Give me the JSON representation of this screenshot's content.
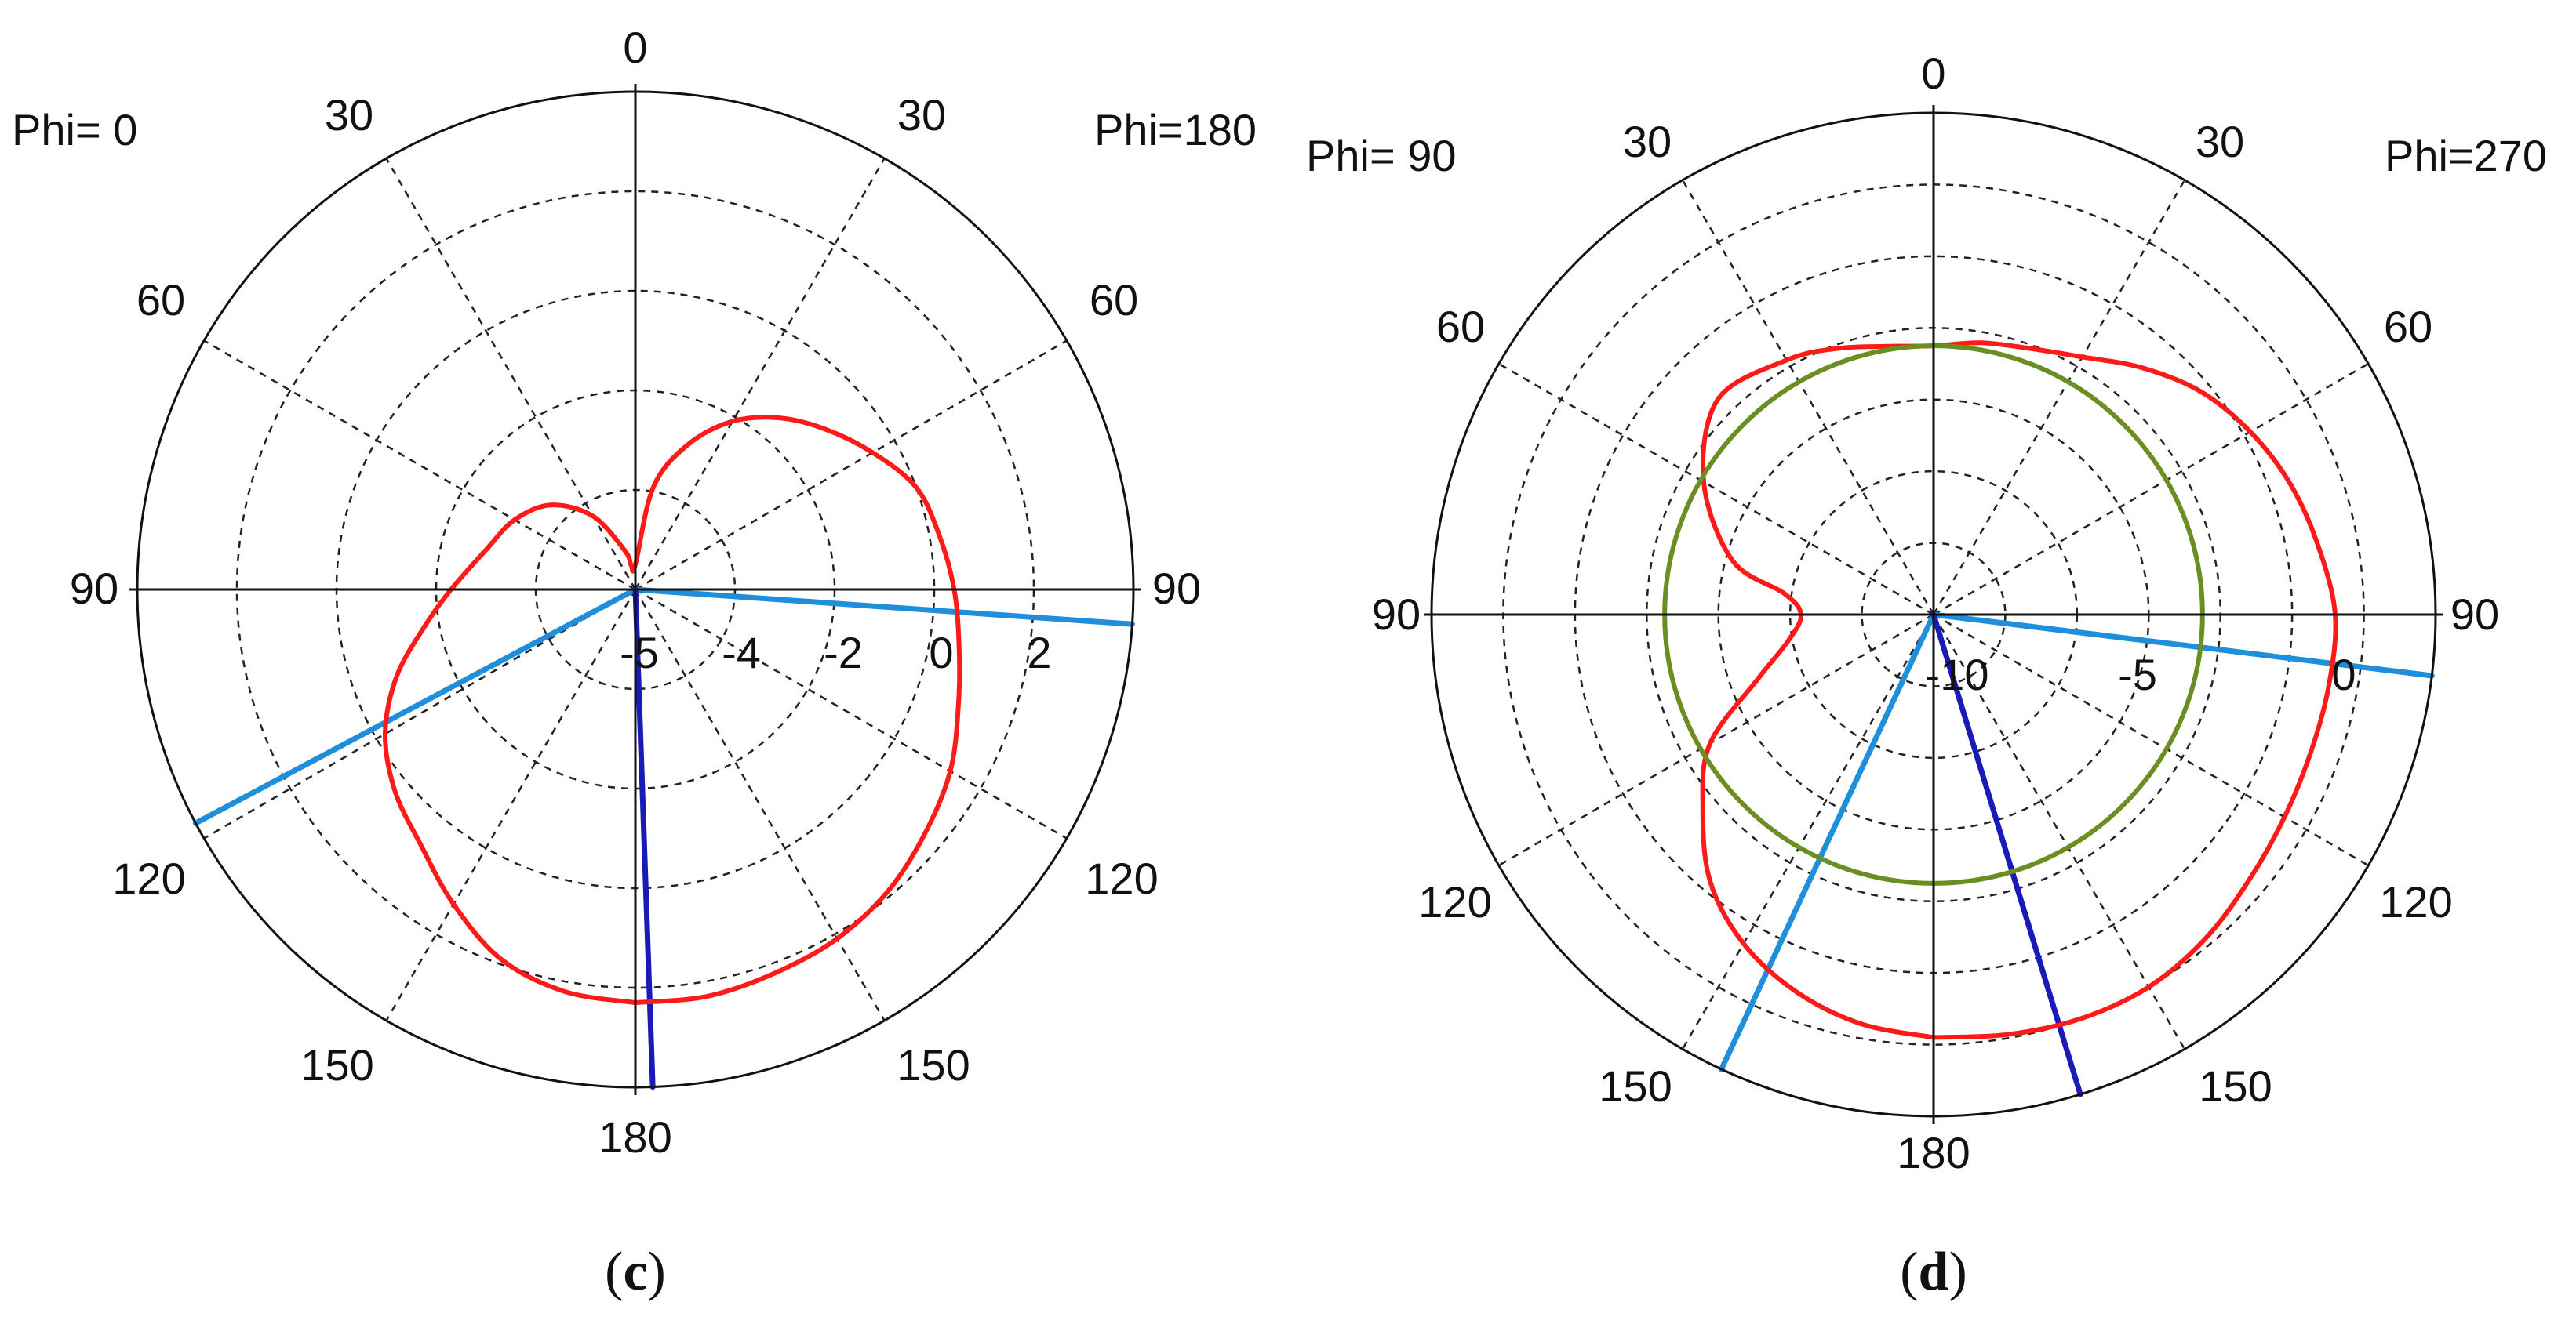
{
  "chart_data": [
    {
      "type": "polar",
      "panel_label": "c",
      "label_left": "Phi=  0",
      "label_right": "Phi=180",
      "angle_labels": {
        "top": "0",
        "left": [
          "30",
          "60",
          "90",
          "120",
          "150"
        ],
        "right": [
          "30",
          "60",
          "90",
          "120",
          "150"
        ],
        "bottom": "180"
      },
      "radial_axis": {
        "min": -6,
        "max": 4,
        "ticks": [
          -6,
          -4,
          -2,
          0,
          2,
          4
        ],
        "tick_labels": [
          "-5",
          "-4",
          "-2",
          "0",
          "2"
        ]
      },
      "grid": true,
      "series": [
        {
          "color": "#ff1a1a",
          "points": [
            {
              "theta": -180,
              "r": 2.3
            },
            {
              "theta": -170,
              "r": 2.3
            },
            {
              "theta": -160,
              "r": 2.2
            },
            {
              "theta": -150,
              "r": 2.1
            },
            {
              "theta": -140,
              "r": 1.9
            },
            {
              "theta": -130,
              "r": 1.6
            },
            {
              "theta": -120,
              "r": 1.3
            },
            {
              "theta": -110,
              "r": 0.9
            },
            {
              "theta": -100,
              "r": 0.6
            },
            {
              "theta": -90,
              "r": 0.4
            },
            {
              "theta": -80,
              "r": 0.2
            },
            {
              "theta": -70,
              "r": 0.0
            },
            {
              "theta": -60,
              "r": -0.5
            },
            {
              "theta": -50,
              "r": -1.0
            },
            {
              "theta": -40,
              "r": -1.5
            },
            {
              "theta": -30,
              "r": -2.1
            },
            {
              "theta": -20,
              "r": -2.9
            },
            {
              "theta": -10,
              "r": -3.9
            },
            {
              "theta": 0,
              "r": -5.5
            },
            {
              "theta": 10,
              "r": -5.5
            },
            {
              "theta": 15,
              "r": -5.2
            },
            {
              "theta": 30,
              "r": -4.3
            },
            {
              "theta": 45,
              "r": -3.6
            },
            {
              "theta": 60,
              "r": -3.2
            },
            {
              "theta": 75,
              "r": -2.9
            },
            {
              "theta": 90,
              "r": -2.3
            },
            {
              "theta": 100,
              "r": -1.7
            },
            {
              "theta": 110,
              "r": -0.9
            },
            {
              "theta": 120,
              "r": -0.2
            },
            {
              "theta": 130,
              "r": 0.3
            },
            {
              "theta": 140,
              "r": 0.7
            },
            {
              "theta": 150,
              "r": 1.3
            },
            {
              "theta": 160,
              "r": 1.9
            },
            {
              "theta": 170,
              "r": 2.2
            },
            {
              "theta": 180,
              "r": 2.3
            }
          ]
        }
      ],
      "reference_lines": [
        {
          "theta": -94,
          "color": "#1f8fdb"
        },
        {
          "theta": 118,
          "color": "#1f8fdb"
        },
        {
          "theta": -178,
          "color": "#1a1ab8"
        }
      ]
    },
    {
      "type": "polar",
      "panel_label": "d",
      "label_left": "Phi= 90",
      "label_right": "Phi=270",
      "angle_labels": {
        "top": "0",
        "left": [
          "30",
          "60",
          "90",
          "120",
          "150"
        ],
        "right": [
          "30",
          "60",
          "90",
          "120",
          "150"
        ],
        "bottom": "180"
      },
      "radial_axis": {
        "min": -12,
        "max": 2,
        "ticks": [
          -12,
          -10,
          -8,
          -6,
          -4,
          -2,
          0,
          2
        ],
        "tick_labels": [
          "-10",
          "-5",
          "0"
        ]
      },
      "grid": true,
      "series": [
        {
          "color": "#ff1a1a",
          "points": [
            {
              "theta": -180,
              "r": -0.2
            },
            {
              "theta": -170,
              "r": -0.1
            },
            {
              "theta": -160,
              "r": 0.0
            },
            {
              "theta": -150,
              "r": 0.0
            },
            {
              "theta": -140,
              "r": -0.2
            },
            {
              "theta": -130,
              "r": -0.5
            },
            {
              "theta": -120,
              "r": -0.7
            },
            {
              "theta": -110,
              "r": -0.8
            },
            {
              "theta": -100,
              "r": -0.8
            },
            {
              "theta": -90,
              "r": -0.8
            },
            {
              "theta": -80,
              "r": -1.1
            },
            {
              "theta": -70,
              "r": -1.4
            },
            {
              "theta": -60,
              "r": -1.8
            },
            {
              "theta": -50,
              "r": -2.3
            },
            {
              "theta": -40,
              "r": -3.0
            },
            {
              "theta": -30,
              "r": -3.7
            },
            {
              "theta": -20,
              "r": -4.1
            },
            {
              "theta": -10,
              "r": -4.3
            },
            {
              "theta": 0,
              "r": -4.5
            },
            {
              "theta": 10,
              "r": -4.4
            },
            {
              "theta": 20,
              "r": -4.1
            },
            {
              "theta": 30,
              "r": -3.8
            },
            {
              "theta": 45,
              "r": -3.5
            },
            {
              "theta": 60,
              "r": -4.6
            },
            {
              "theta": 75,
              "r": -6.2
            },
            {
              "theta": 82,
              "r": -7.8
            },
            {
              "theta": 90,
              "r": -8.3
            },
            {
              "theta": 100,
              "r": -7.9
            },
            {
              "theta": 110,
              "r": -6.8
            },
            {
              "theta": 120,
              "r": -4.8
            },
            {
              "theta": 130,
              "r": -3.6
            },
            {
              "theta": 140,
              "r": -2.3
            },
            {
              "theta": 150,
              "r": -1.4
            },
            {
              "theta": 160,
              "r": -0.8
            },
            {
              "theta": 170,
              "r": -0.4
            },
            {
              "theta": 180,
              "r": -0.2
            }
          ]
        },
        {
          "color": "#6b8e23",
          "points": [
            {
              "theta": -180,
              "r": -4.5
            },
            {
              "theta": -90,
              "r": -4.5
            },
            {
              "theta": 0,
              "r": -4.5
            },
            {
              "theta": 90,
              "r": -4.5
            },
            {
              "theta": 180,
              "r": -4.5
            }
          ]
        }
      ],
      "reference_lines": [
        {
          "theta": -97,
          "color": "#1f8fdb"
        },
        {
          "theta": 155,
          "color": "#1f8fdb"
        },
        {
          "theta": -163,
          "color": "#1a1ab8"
        }
      ]
    }
  ]
}
